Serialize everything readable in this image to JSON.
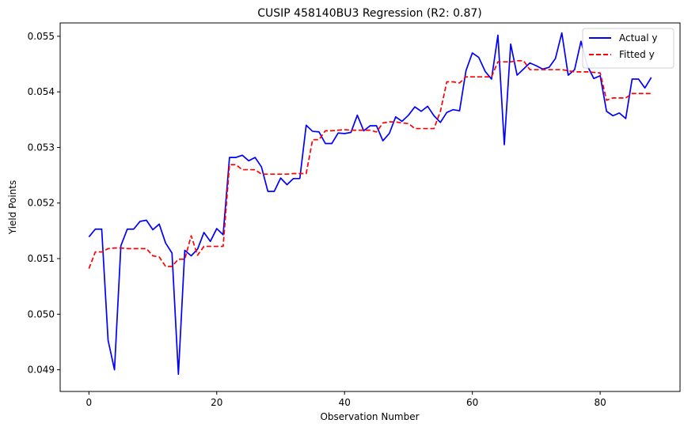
{
  "chart_data": {
    "type": "line",
    "title": "CUSIP 458140BU3 Regression (R2: 0.87)",
    "xlabel": "Observation Number",
    "ylabel": "Yield Points",
    "xlim": [
      -4.5,
      92.5
    ],
    "ylim": [
      0.04861,
      0.05524
    ],
    "xticks": [
      0,
      20,
      40,
      60,
      80
    ],
    "yticks": [
      0.049,
      0.05,
      0.051,
      0.052,
      0.053,
      0.054,
      0.055
    ],
    "ytick_labels": [
      "0.049",
      "0.050",
      "0.051",
      "0.052",
      "0.053",
      "0.054",
      "0.055"
    ],
    "grid": false,
    "legend_position": "top-right",
    "series": [
      {
        "name": "Actual y",
        "color": "#0000ff",
        "style": "solid",
        "values": [
          0.05139,
          0.05153,
          0.05153,
          0.04953,
          0.049,
          0.05123,
          0.05153,
          0.05153,
          0.05167,
          0.05169,
          0.05152,
          0.05162,
          0.05128,
          0.0511,
          0.04892,
          0.05115,
          0.05105,
          0.05117,
          0.05147,
          0.05131,
          0.05154,
          0.05143,
          0.05282,
          0.05282,
          0.05286,
          0.05276,
          0.05282,
          0.05265,
          0.05221,
          0.05221,
          0.05245,
          0.05233,
          0.05244,
          0.05244,
          0.0534,
          0.05329,
          0.05328,
          0.05307,
          0.05307,
          0.05326,
          0.05325,
          0.05327,
          0.05358,
          0.0533,
          0.05339,
          0.05339,
          0.05312,
          0.05325,
          0.05355,
          0.05347,
          0.05358,
          0.05373,
          0.05365,
          0.05374,
          0.05357,
          0.05345,
          0.05363,
          0.05368,
          0.05366,
          0.05438,
          0.0547,
          0.05462,
          0.05437,
          0.05423,
          0.05502,
          0.05305,
          0.05486,
          0.0543,
          0.05441,
          0.05452,
          0.05447,
          0.05441,
          0.05444,
          0.0546,
          0.05506,
          0.0543,
          0.0544,
          0.05491,
          0.05447,
          0.05424,
          0.05429,
          0.05365,
          0.05357,
          0.05362,
          0.05352,
          0.05423,
          0.05423,
          0.05407,
          0.05426
        ]
      },
      {
        "name": "Fitted y",
        "color": "#ff0000",
        "style": "dashed",
        "values": [
          0.05082,
          0.05112,
          0.05112,
          0.05118,
          0.05119,
          0.05119,
          0.05118,
          0.05118,
          0.05118,
          0.05118,
          0.05105,
          0.05103,
          0.05086,
          0.05086,
          0.05099,
          0.05099,
          0.05141,
          0.05106,
          0.05122,
          0.05122,
          0.05122,
          0.05122,
          0.05269,
          0.05269,
          0.0526,
          0.0526,
          0.0526,
          0.05252,
          0.05252,
          0.05252,
          0.05252,
          0.05252,
          0.05253,
          0.05253,
          0.05253,
          0.05314,
          0.05314,
          0.0533,
          0.0533,
          0.05331,
          0.05332,
          0.05331,
          0.05331,
          0.05331,
          0.05331,
          0.05328,
          0.05344,
          0.05346,
          0.05346,
          0.05344,
          0.05343,
          0.05334,
          0.05334,
          0.05334,
          0.05334,
          0.05365,
          0.05418,
          0.05418,
          0.05416,
          0.05427,
          0.05427,
          0.05427,
          0.05427,
          0.05427,
          0.05454,
          0.05454,
          0.05454,
          0.05456,
          0.05456,
          0.0544,
          0.0544,
          0.0544,
          0.0544,
          0.0544,
          0.0544,
          0.05438,
          0.05436,
          0.05436,
          0.05436,
          0.05435,
          0.05434,
          0.05385,
          0.05389,
          0.05389,
          0.05389,
          0.05397,
          0.05397,
          0.05397,
          0.05397
        ]
      }
    ]
  }
}
